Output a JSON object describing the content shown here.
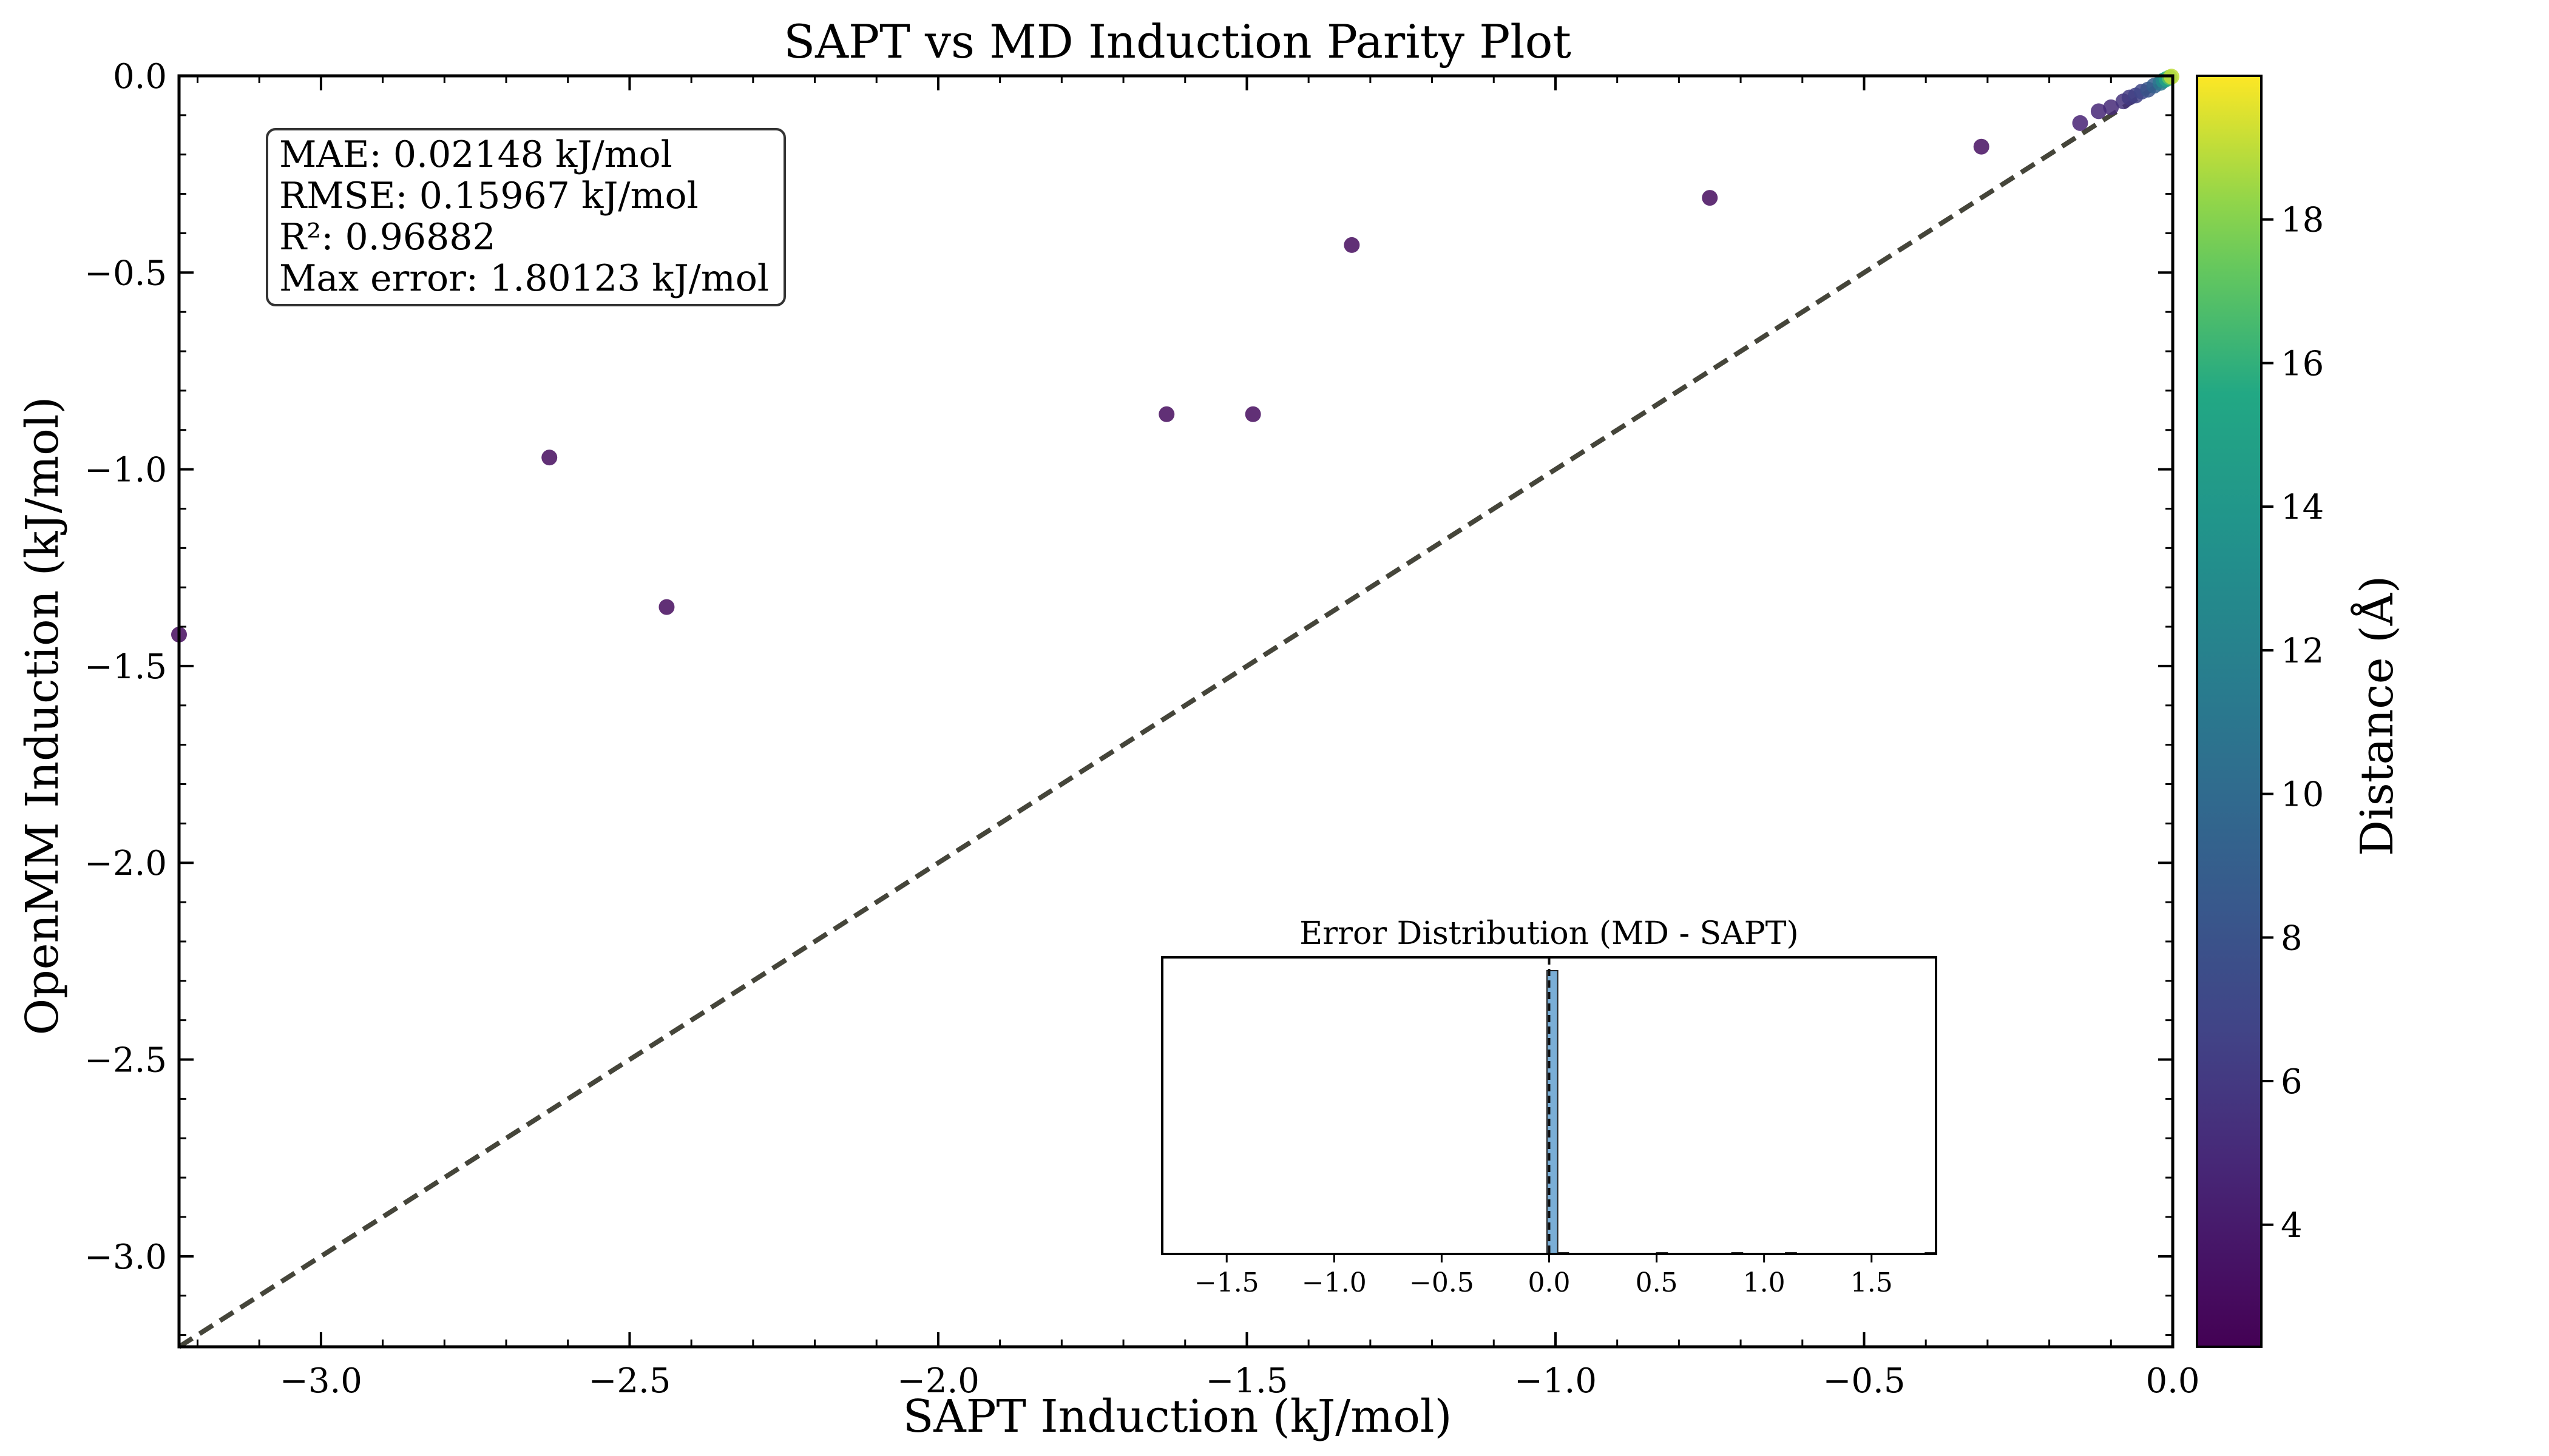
{
  "chart_data": [
    {
      "type": "scatter",
      "title": "SAPT vs MD Induction Parity Plot",
      "xlabel": "SAPT Induction (kJ/mol)",
      "ylabel": "OpenMM Induction (kJ/mol)",
      "xlim": [
        -3.23,
        0.0
      ],
      "ylim": [
        -3.23,
        0.0
      ],
      "xticks": [
        -3.0,
        -2.5,
        -2.0,
        -1.5,
        -1.0,
        -0.5,
        0.0
      ],
      "xtick_labels": [
        "−3.0",
        "−2.5",
        "−2.0",
        "−1.5",
        "−1.0",
        "−0.5",
        "0.0"
      ],
      "yticks": [
        0.0,
        -0.5,
        -1.0,
        -1.5,
        -2.0,
        -2.5,
        -3.0
      ],
      "ytick_labels": [
        "0.0",
        "−0.5",
        "−1.0",
        "−1.5",
        "−2.0",
        "−2.5",
        "−3.0"
      ],
      "parity_line": true,
      "grid": false,
      "colorbar": {
        "label": "Distance (Å)",
        "range": [
          2.3,
          20.0
        ],
        "ticks": [
          4,
          6,
          8,
          10,
          12,
          14,
          16,
          18
        ],
        "tick_labels": [
          "4",
          "6",
          "8",
          "10",
          "12",
          "14",
          "16",
          "18"
        ],
        "colormap": "viridis"
      },
      "stats": [
        "MAE: 0.02148 kJ/mol",
        "RMSE: 0.15967 kJ/mol",
        "R²: 0.96882",
        "Max error: 1.80123 kJ/mol"
      ],
      "points": [
        {
          "x": -3.23,
          "y": -1.42,
          "c": 3.0
        },
        {
          "x": -2.63,
          "y": -0.97,
          "c": 3.0
        },
        {
          "x": -2.44,
          "y": -1.35,
          "c": 3.0
        },
        {
          "x": -1.63,
          "y": -0.86,
          "c": 3.0
        },
        {
          "x": -1.49,
          "y": -0.86,
          "c": 3.0
        },
        {
          "x": -1.33,
          "y": -0.43,
          "c": 3.0
        },
        {
          "x": -0.75,
          "y": -0.31,
          "c": 3.0
        },
        {
          "x": -0.31,
          "y": -0.18,
          "c": 3.2
        },
        {
          "x": -0.15,
          "y": -0.12,
          "c": 4.5
        },
        {
          "x": -0.12,
          "y": -0.09,
          "c": 4.8
        },
        {
          "x": -0.1,
          "y": -0.08,
          "c": 5.0
        },
        {
          "x": -0.08,
          "y": -0.065,
          "c": 5.5
        },
        {
          "x": -0.07,
          "y": -0.055,
          "c": 6.0
        },
        {
          "x": -0.06,
          "y": -0.05,
          "c": 6.5
        },
        {
          "x": -0.05,
          "y": -0.04,
          "c": 7.0
        },
        {
          "x": -0.04,
          "y": -0.035,
          "c": 8.0
        },
        {
          "x": -0.03,
          "y": -0.025,
          "c": 9.0
        },
        {
          "x": -0.02,
          "y": -0.018,
          "c": 11.0
        },
        {
          "x": -0.015,
          "y": -0.012,
          "c": 13.0
        },
        {
          "x": -0.01,
          "y": -0.008,
          "c": 15.0
        },
        {
          "x": -0.005,
          "y": -0.004,
          "c": 17.0
        },
        {
          "x": -0.002,
          "y": -0.002,
          "c": 19.0
        }
      ]
    },
    {
      "type": "bar",
      "title": "Error Distribution (MD - SAPT)",
      "xlim": [
        -1.8,
        1.8
      ],
      "xticks": [
        -1.5,
        -1.0,
        -0.5,
        0.0,
        0.5,
        1.0,
        1.5
      ],
      "xtick_labels": [
        "−1.5",
        "−1.0",
        "−0.5",
        "0.0",
        "0.5",
        "1.0",
        "1.5"
      ],
      "bins": [
        {
          "x0": -0.01,
          "x1": 0.04,
          "count": 1000
        },
        {
          "x0": 0.04,
          "x1": 0.09,
          "count": 3
        },
        {
          "x0": 0.5,
          "x1": 0.55,
          "count": 1
        },
        {
          "x0": 0.85,
          "x1": 0.9,
          "count": 1
        },
        {
          "x0": 1.1,
          "x1": 1.15,
          "count": 1
        },
        {
          "x0": 1.75,
          "x1": 1.8,
          "count": 1
        }
      ],
      "ymax": 1000,
      "zero_line": true,
      "bar_color": "#7aaed6"
    }
  ]
}
